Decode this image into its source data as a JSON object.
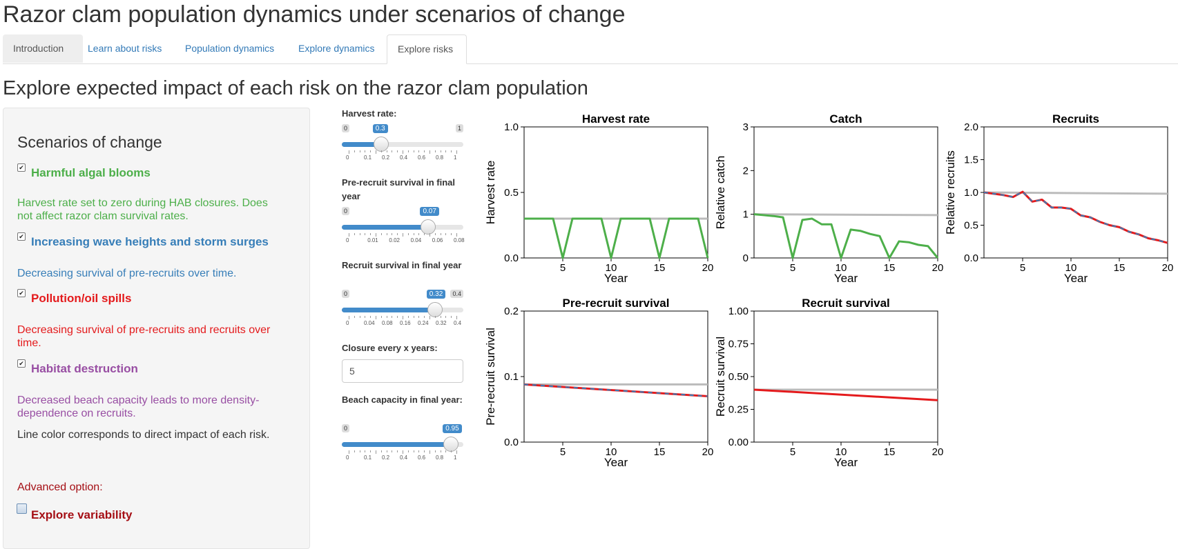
{
  "app_title": "Razor clam population dynamics under scenarios of change",
  "tabs": [
    "Introduction",
    "Learn about risks",
    "Population dynamics",
    "Explore dynamics",
    "Explore risks"
  ],
  "active_tab": "Explore risks",
  "section_title": "Explore expected impact of each risk on the razor clam population",
  "sidebar": {
    "heading": "Scenarios of change",
    "risks": [
      {
        "label": "Harmful algal blooms",
        "checked": true,
        "color": "#4daf4a",
        "desc": "Harvest rate set to zero during HAB closures. Does not affect razor clam survival rates."
      },
      {
        "label": "Increasing wave heights and storm surges",
        "checked": true,
        "color": "#377eb8",
        "desc": "Decreasing survival of pre-recruits over time."
      },
      {
        "label": "Pollution/oil spills",
        "checked": true,
        "color": "#e41a1c",
        "desc": "Decreasing survival of pre-recruits and recruits over time."
      },
      {
        "label": "Habitat destruction",
        "checked": true,
        "color": "#984ea3",
        "desc": "Decreased beach capacity leads to more density-dependence on recruits."
      }
    ],
    "note": "Line color corresponds to direct impact of each risk.",
    "advanced_label": "Advanced option:",
    "variability_label": "Explore variability",
    "variability_checked": false
  },
  "controls": {
    "harvest": {
      "label": "Harvest rate:",
      "min": "0",
      "max": "1",
      "value": "0.3",
      "frac": 0.3,
      "grid": [
        "0",
        "0.1",
        "0.2",
        "0.4",
        "0.6",
        "0.8",
        "1"
      ]
    },
    "prerecruit": {
      "label": "Pre-recruit survival in final year",
      "value": "0.07",
      "frac": 0.74,
      "min": "0",
      "grid": [
        "0",
        "0.01",
        "0.02",
        "0.04",
        "0.06",
        "0.08"
      ]
    },
    "recruit": {
      "label": "Recruit survival in final year",
      "min": "0",
      "max": "0.4",
      "value": "0.32",
      "frac": 0.8,
      "grid": [
        "0",
        "0.04",
        "0.08",
        "0.16",
        "0.24",
        "0.32",
        "0.4"
      ]
    },
    "closure": {
      "label": "Closure every x years:",
      "value": "5"
    },
    "capacity": {
      "label": "Beach capacity in final year:",
      "min": "0",
      "value": "0.95",
      "frac": 0.95,
      "grid": [
        "0",
        "0.1",
        "0.2",
        "0.4",
        "0.6",
        "0.8",
        "1"
      ]
    }
  },
  "chart_data": [
    {
      "type": "line",
      "title": "Harvest rate",
      "xlabel": "Year",
      "ylabel": "Harvest rate",
      "xlim": [
        1,
        20
      ],
      "ylim": [
        0,
        1
      ],
      "xticks": [
        "5",
        "10",
        "15",
        "20"
      ],
      "yticks": [
        "0.0",
        "0.5",
        "1.0"
      ],
      "ytick_values": [
        0,
        0.5,
        1.0
      ],
      "series": [
        {
          "color": "#bbbbbb",
          "x": [
            1,
            20
          ],
          "y": [
            0.3,
            0.3
          ]
        },
        {
          "color": "#4daf4a",
          "x": [
            1,
            2,
            3,
            4,
            5,
            6,
            7,
            8,
            9,
            10,
            11,
            12,
            13,
            14,
            15,
            16,
            17,
            18,
            19,
            20
          ],
          "y": [
            0.3,
            0.3,
            0.3,
            0.3,
            0,
            0.3,
            0.3,
            0.3,
            0.3,
            0,
            0.3,
            0.3,
            0.3,
            0.3,
            0,
            0.3,
            0.3,
            0.3,
            0.3,
            0
          ]
        }
      ]
    },
    {
      "type": "line",
      "title": "Catch",
      "xlabel": "Year",
      "ylabel": "Relative catch",
      "xlim": [
        1,
        20
      ],
      "ylim": [
        0,
        3
      ],
      "xticks": [
        "5",
        "10",
        "15",
        "20"
      ],
      "yticks": [
        "0",
        "1",
        "2",
        "3"
      ],
      "ytick_values": [
        0,
        1,
        2,
        3
      ],
      "series": [
        {
          "color": "#bbbbbb",
          "x": [
            1,
            20
          ],
          "y": [
            1.0,
            0.98
          ]
        },
        {
          "color": "#4daf4a",
          "x": [
            1,
            2,
            3,
            4,
            5,
            6,
            7,
            8,
            9,
            10,
            11,
            12,
            13,
            14,
            15,
            16,
            17,
            18,
            19,
            20
          ],
          "y": [
            1.0,
            0.98,
            0.96,
            0.93,
            0,
            0.87,
            0.9,
            0.77,
            0.77,
            0,
            0.65,
            0.62,
            0.55,
            0.5,
            0,
            0.38,
            0.36,
            0.3,
            0.27,
            0
          ]
        }
      ]
    },
    {
      "type": "line",
      "title": "Recruits",
      "xlabel": "Year",
      "ylabel": "Relative recruits",
      "xlim": [
        1,
        20
      ],
      "ylim": [
        0,
        2
      ],
      "xticks": [
        "5",
        "10",
        "15",
        "20"
      ],
      "yticks": [
        "0.0",
        "0.5",
        "1.0",
        "1.5",
        "2.0"
      ],
      "ytick_values": [
        0,
        0.5,
        1.0,
        1.5,
        2.0
      ],
      "series": [
        {
          "color": "#bbbbbb",
          "x": [
            1,
            20
          ],
          "y": [
            1.0,
            0.98
          ]
        },
        {
          "color": "#e41a1c",
          "dash_color": "#377eb8",
          "x": [
            1,
            2,
            3,
            4,
            5,
            6,
            7,
            8,
            9,
            10,
            11,
            12,
            13,
            14,
            15,
            16,
            17,
            18,
            19,
            20
          ],
          "y": [
            1.0,
            0.98,
            0.96,
            0.93,
            1.01,
            0.86,
            0.89,
            0.77,
            0.77,
            0.75,
            0.65,
            0.62,
            0.55,
            0.5,
            0.47,
            0.4,
            0.36,
            0.3,
            0.27,
            0.23
          ]
        }
      ]
    },
    {
      "type": "line",
      "title": "Pre-recruit survival",
      "xlabel": "Year",
      "ylabel": "Pre-recruit survival",
      "xlim": [
        1,
        20
      ],
      "ylim": [
        0,
        0.2
      ],
      "xticks": [
        "5",
        "10",
        "15",
        "20"
      ],
      "yticks": [
        "0.0",
        "0.1",
        "0.2"
      ],
      "ytick_values": [
        0,
        0.1,
        0.2
      ],
      "series": [
        {
          "color": "#bbbbbb",
          "x": [
            1,
            20
          ],
          "y": [
            0.088,
            0.088
          ]
        },
        {
          "color": "#e41a1c",
          "dash_color": "#377eb8",
          "x": [
            1,
            20
          ],
          "y": [
            0.088,
            0.07
          ]
        }
      ]
    },
    {
      "type": "line",
      "title": "Recruit survival",
      "xlabel": "Year",
      "ylabel": "Recruit survival",
      "xlim": [
        1,
        20
      ],
      "ylim": [
        0,
        1
      ],
      "xticks": [
        "5",
        "10",
        "15",
        "20"
      ],
      "yticks": [
        "0.00",
        "0.25",
        "0.50",
        "0.75",
        "1.00"
      ],
      "ytick_values": [
        0,
        0.25,
        0.5,
        0.75,
        1.0
      ],
      "series": [
        {
          "color": "#bbbbbb",
          "x": [
            1,
            20
          ],
          "y": [
            0.4,
            0.4
          ]
        },
        {
          "color": "#e41a1c",
          "x": [
            1,
            20
          ],
          "y": [
            0.4,
            0.32
          ]
        }
      ]
    }
  ]
}
